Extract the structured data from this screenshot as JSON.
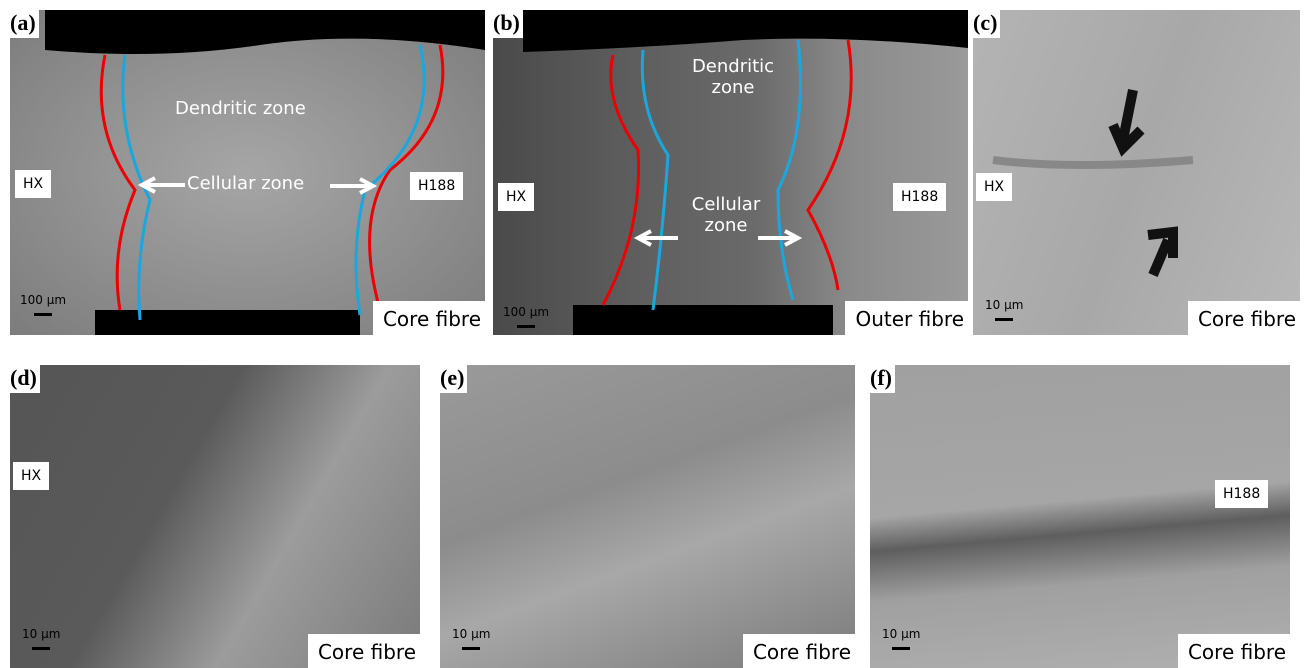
{
  "panels": [
    {
      "label": "(a)",
      "texts": [
        "Dendritic zone",
        "Cellular zone",
        "HX",
        "H188",
        "100 µm",
        "Core fibre"
      ]
    },
    {
      "label": "(b)",
      "texts": [
        "Dendritic zone",
        "Cellular zone",
        "HX",
        "H188",
        "100 µm",
        "Outer fibre"
      ]
    },
    {
      "label": "(c)",
      "texts": [
        "HX",
        "10 µm",
        "Core fibre"
      ]
    },
    {
      "label": "(d)",
      "texts": [
        "HX",
        "10 µm",
        "Core fibre"
      ]
    },
    {
      "label": "(e)",
      "texts": [
        "10 µm",
        "Core fibre"
      ]
    },
    {
      "label": "(f)",
      "texts": [
        "H188",
        "10 µm",
        "Core fibre"
      ]
    }
  ]
}
